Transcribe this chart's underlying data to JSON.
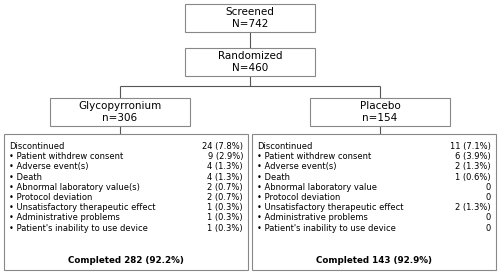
{
  "screened_text": "Screened\nN=742",
  "randomized_text": "Randomized\nN=460",
  "glyco_text": "Glycopyrronium\nn=306",
  "placebo_text": "Placebo\nn=154",
  "glyco_discontinued_header": "Discontinued",
  "glyco_discontinued_value": "24 (7.8%)",
  "glyco_items": [
    [
      "• Patient withdrew consent",
      "9 (2.9%)"
    ],
    [
      "• Adverse event(s)",
      "4 (1.3%)"
    ],
    [
      "• Death",
      "4 (1.3%)"
    ],
    [
      "• Abnormal laboratory value(s)",
      "2 (0.7%)"
    ],
    [
      "• Protocol deviation",
      "2 (0.7%)"
    ],
    [
      "• Unsatisfactory therapeutic effect",
      "1 (0.3%)"
    ],
    [
      "• Administrative problems",
      "1 (0.3%)"
    ],
    [
      "• Patient's inability to use device",
      "1 (0.3%)"
    ]
  ],
  "glyco_completed": "Completed 282 (92.2%)",
  "placebo_discontinued_header": "Discontinued",
  "placebo_discontinued_value": "11 (7.1%)",
  "placebo_items": [
    [
      "• Patient withdrew consent",
      "6 (3.9%)"
    ],
    [
      "• Adverse event(s)",
      "2 (1.3%)"
    ],
    [
      "• Death",
      "1 (0.6%)"
    ],
    [
      "• Abnormal laboratory value",
      "0"
    ],
    [
      "• Protocol deviation",
      "0"
    ],
    [
      "• Unsatisfactory therapeutic effect",
      "2 (1.3%)"
    ],
    [
      "• Administrative problems",
      "0"
    ],
    [
      "• Patient's inability to use device",
      "0"
    ]
  ],
  "placebo_completed": "Completed 143 (92.9%)",
  "bg_color": "#ffffff",
  "box_edge_color": "#888888",
  "text_color": "#000000"
}
